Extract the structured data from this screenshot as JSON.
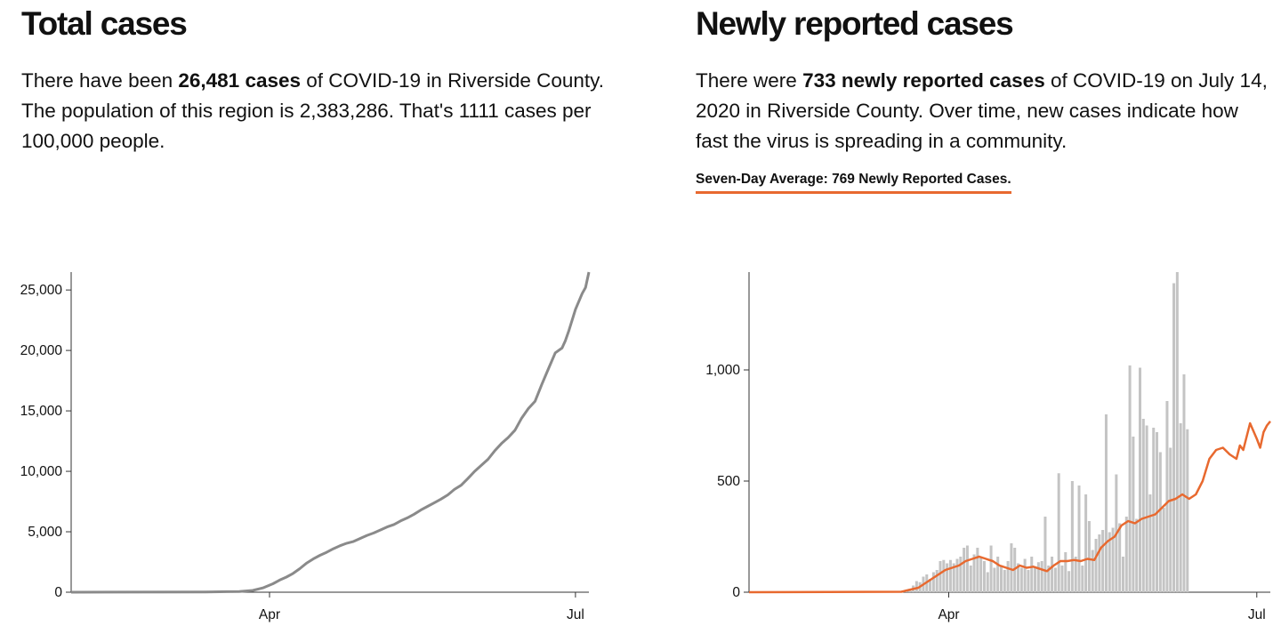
{
  "total_cases": {
    "title": "Total cases",
    "desc_pre": "There have been ",
    "desc_bold": "26,481 cases",
    "desc_post": " of COVID-19 in Riverside County. The population of this region is 2,383,286. That's 1111 cases per 100,000 people."
  },
  "new_cases": {
    "title": "Newly reported cases",
    "desc_pre": "There were ",
    "desc_bold": "733 newly reported cases",
    "desc_post": " of COVID-19 on July 14, 2020 in Riverside County. Over time, new cases indicate how fast the virus is spreading in a community.",
    "avg_label": "Seven-Day Average: 769 Newly Reported Cases."
  },
  "colors": {
    "cumulative_line": "#8a8a8a",
    "bar": "#c4c4c4",
    "average_line": "#e8692f",
    "axis": "#333333"
  },
  "chart_data": [
    {
      "type": "line",
      "title": "Total cases",
      "xlabel": "",
      "ylabel": "",
      "xlim": [
        0,
        154
      ],
      "ylim": [
        0,
        26481
      ],
      "yticks": [
        0,
        5000,
        10000,
        15000,
        20000,
        25000
      ],
      "ytick_labels": [
        "0",
        "5,000",
        "10,000",
        "15,000",
        "20,000",
        "25,000"
      ],
      "xticks": [
        59,
        150
      ],
      "xtick_labels": [
        "Apr",
        "Jul"
      ],
      "series": [
        {
          "name": "Total cases",
          "x": [
            0,
            40,
            50,
            54,
            57,
            60,
            62,
            64,
            66,
            68,
            70,
            72,
            74,
            76,
            78,
            80,
            82,
            84,
            86,
            88,
            90,
            92,
            94,
            96,
            98,
            100,
            102,
            104,
            106,
            108,
            110,
            112,
            114,
            116,
            118,
            120,
            122,
            124,
            126,
            128,
            130,
            132,
            134,
            136,
            138,
            140,
            142,
            144,
            146,
            147,
            148,
            150,
            152,
            153,
            154
          ],
          "values": [
            0,
            20,
            60,
            150,
            350,
            700,
            1000,
            1250,
            1550,
            1950,
            2400,
            2750,
            3050,
            3300,
            3600,
            3850,
            4050,
            4200,
            4450,
            4700,
            4900,
            5150,
            5400,
            5600,
            5900,
            6150,
            6450,
            6800,
            7100,
            7400,
            7700,
            8050,
            8500,
            8850,
            9400,
            10000,
            10500,
            11000,
            11700,
            12300,
            12800,
            13400,
            14400,
            15200,
            15800,
            17200,
            18500,
            19800,
            20200,
            20800,
            21600,
            23400,
            24700,
            25200,
            26481
          ]
        }
      ]
    },
    {
      "type": "bar",
      "title": "Newly reported cases",
      "xlabel": "",
      "ylabel": "",
      "xlim": [
        0,
        154
      ],
      "ylim": [
        0,
        1440
      ],
      "yticks": [
        0,
        500,
        1000
      ],
      "ytick_labels": [
        "0",
        "500",
        "1,000"
      ],
      "xticks": [
        59,
        150
      ],
      "xtick_labels": [
        "Apr",
        "Jul"
      ],
      "series": [
        {
          "name": "Newly reported cases",
          "start_x": 45,
          "values": [
            3,
            8,
            15,
            30,
            50,
            45,
            70,
            80,
            60,
            90,
            100,
            140,
            145,
            130,
            145,
            130,
            150,
            160,
            200,
            210,
            120,
            170,
            200,
            160,
            140,
            90,
            210,
            110,
            160,
            120,
            100,
            140,
            220,
            200,
            130,
            110,
            150,
            100,
            160,
            110,
            135,
            140,
            340,
            120,
            160,
            110,
            535,
            120,
            180,
            95,
            500,
            160,
            480,
            120,
            440,
            320,
            190,
            240,
            260,
            280,
            800,
            270,
            290,
            530,
            310,
            160,
            340,
            1020,
            700,
            330,
            1010,
            780,
            750,
            440,
            740,
            720,
            630,
            380,
            860,
            650,
            1390,
            1440,
            760,
            980,
            733
          ]
        },
        {
          "name": "Seven-day average",
          "type": "line",
          "x": [
            0,
            45,
            50,
            52,
            54,
            56,
            58,
            60,
            62,
            64,
            66,
            68,
            70,
            71,
            72,
            74,
            76,
            78,
            80,
            82,
            84,
            86,
            88,
            90,
            92,
            94,
            96,
            98,
            100,
            102,
            104,
            106,
            108,
            110,
            112,
            114,
            116,
            118,
            120,
            122,
            124,
            126,
            128,
            130,
            132,
            134,
            136,
            138,
            140,
            142,
            144,
            145,
            146,
            148,
            150,
            151,
            152,
            153,
            154
          ],
          "values": [
            0,
            2,
            20,
            40,
            60,
            80,
            100,
            110,
            120,
            140,
            150,
            160,
            150,
            145,
            140,
            120,
            110,
            100,
            120,
            110,
            115,
            105,
            95,
            120,
            140,
            140,
            145,
            140,
            150,
            145,
            200,
            230,
            250,
            300,
            320,
            310,
            330,
            340,
            350,
            380,
            410,
            420,
            440,
            420,
            440,
            500,
            600,
            640,
            650,
            620,
            600,
            660,
            640,
            760,
            690,
            650,
            720,
            750,
            769
          ]
        }
      ]
    }
  ]
}
